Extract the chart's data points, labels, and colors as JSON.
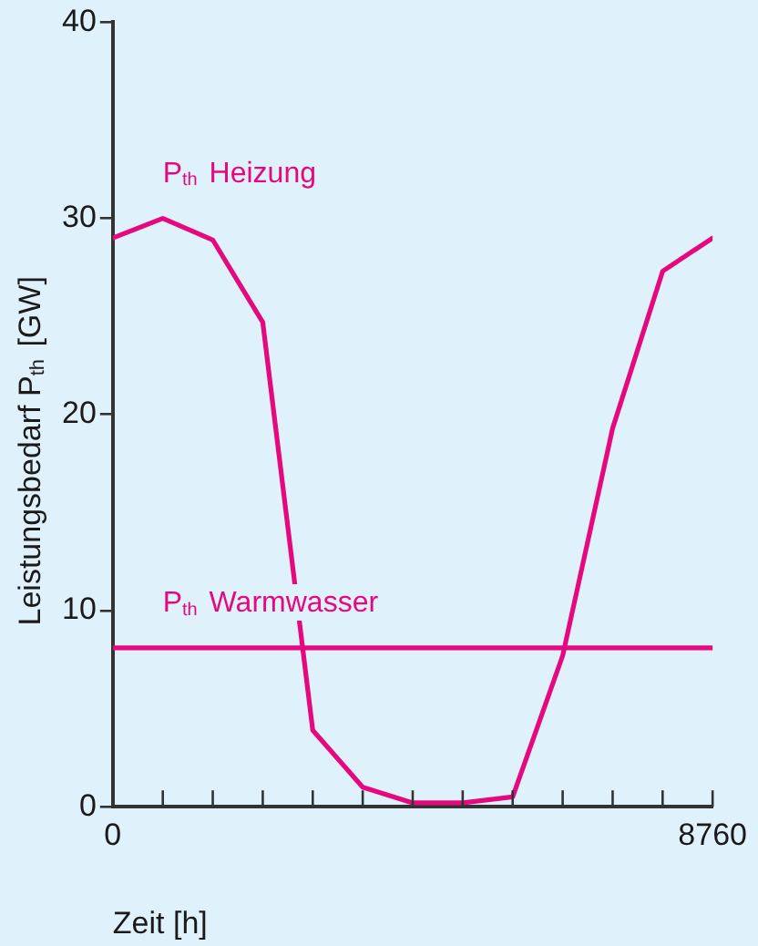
{
  "chart_data": {
    "type": "line",
    "xlabel": "Zeit [h]",
    "ylabel": "Leistungsbedarf P$_{th}$ [GW]",
    "x": [
      0,
      730,
      1460,
      2190,
      2920,
      3650,
      4380,
      5110,
      5840,
      6570,
      7300,
      8030,
      8760
    ],
    "series": [
      {
        "name": "P$_{th}$ Heizung",
        "color": "#e5097f",
        "values": [
          29.0,
          30.0,
          28.9,
          24.7,
          3.9,
          1.0,
          0.2,
          0.2,
          0.5,
          7.7,
          19.3,
          27.3,
          29.0
        ]
      },
      {
        "name": "P$_{th}$ Warmwasser",
        "color": "#e5097f",
        "values": [
          8.1,
          8.1,
          8.1,
          8.1,
          8.1,
          8.1,
          8.1,
          8.1,
          8.1,
          8.1,
          8.1,
          8.1,
          8.1
        ]
      }
    ],
    "xlim": [
      0,
      8760
    ],
    "xticks": [
      0,
      {
        "value": 730,
        "label": null
      },
      {
        "value": 1460,
        "label": null
      },
      {
        "value": 2190,
        "label": null
      },
      {
        "value": 2920,
        "label": null
      },
      {
        "value": 3650,
        "label": null
      },
      {
        "value": 4380,
        "label": null
      },
      {
        "value": 5110,
        "label": null
      },
      {
        "value": 5840,
        "label": null
      },
      {
        "value": 6570,
        "label": null
      },
      {
        "value": 7300,
        "label": null
      },
      {
        "value": 8030,
        "label": null
      },
      8760
    ],
    "ylim": [
      0,
      40
    ],
    "yticks": [
      0,
      10,
      20,
      30,
      40
    ],
    "grid": false,
    "legend": false,
    "marker": "none",
    "line_style": "solid"
  }
}
